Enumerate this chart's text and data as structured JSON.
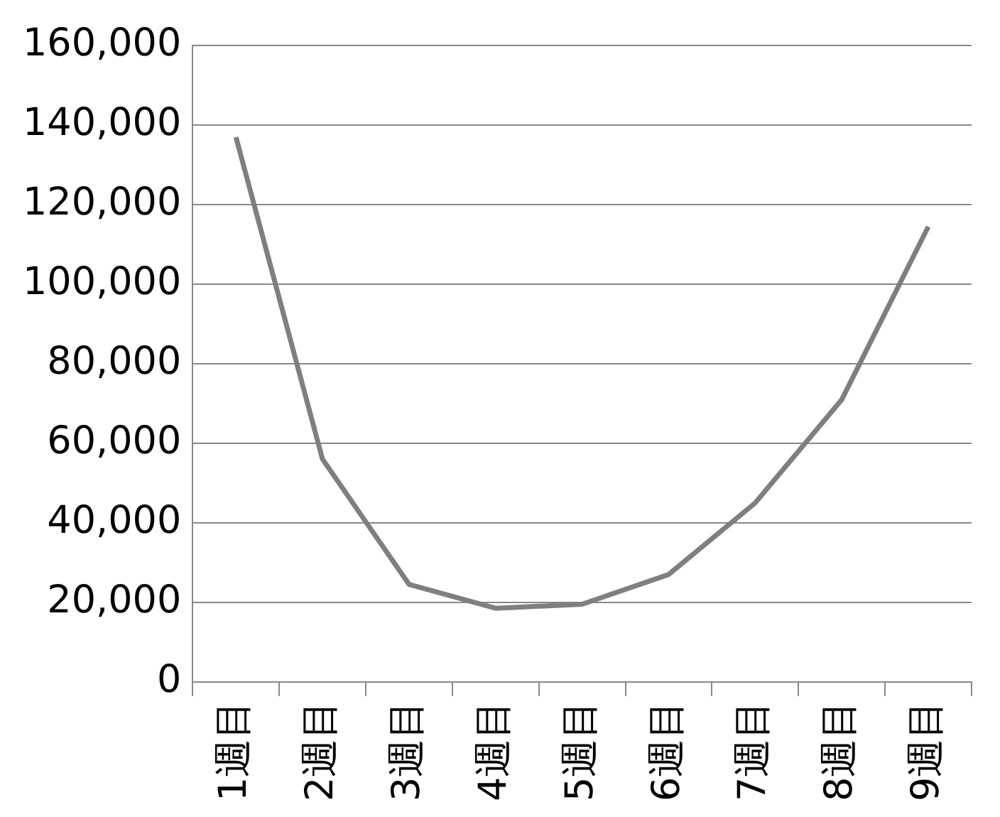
{
  "chart_data": {
    "type": "line",
    "categories": [
      "1週目",
      "2週目",
      "3週目",
      "4週目",
      "5週目",
      "6週目",
      "7週目",
      "8週目",
      "9週目"
    ],
    "series": [
      {
        "color": "#7f7f7f",
        "values": [
          137000,
          56000,
          24500,
          18500,
          19500,
          27000,
          45000,
          71000,
          114500
        ]
      }
    ],
    "ylim": [
      0,
      160000
    ],
    "yticks": [
      0,
      {
        "value": 20000,
        "label": "20,000"
      },
      {
        "value": 40000,
        "label": "40,000"
      },
      {
        "value": 60000,
        "label": "60,000"
      },
      {
        "value": 80000,
        "label": "80,000"
      },
      {
        "value": 100000,
        "label": "100,000"
      },
      {
        "value": 120000,
        "label": "120,000"
      },
      {
        "value": 140000,
        "label": "140,000"
      },
      {
        "value": 160000,
        "label": "160,000"
      }
    ],
    "grid": "y",
    "legend": false,
    "marker": "none",
    "line_style": "solid"
  }
}
